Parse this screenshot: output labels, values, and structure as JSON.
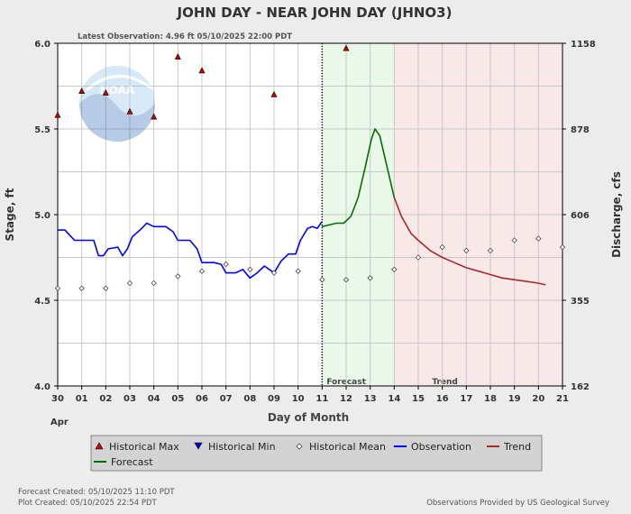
{
  "chart_data": {
    "type": "line",
    "title": "JOHN DAY - NEAR JOHN DAY  (JHNO3)",
    "subtitle": "Latest Observation: 4.96 ft 05/10/2025 22:00 PDT",
    "xlabel": "Day of Month",
    "ylabel_left": "Stage, ft",
    "ylabel_right": "Discharge, cfs",
    "xlim": [
      0,
      21
    ],
    "ylim": [
      4.0,
      6.0
    ],
    "x_ticks": [
      "30",
      "01",
      "02",
      "03",
      "04",
      "05",
      "06",
      "07",
      "08",
      "09",
      "10",
      "11",
      "12",
      "13",
      "14",
      "15",
      "16",
      "17",
      "18",
      "19",
      "20",
      "21"
    ],
    "x_month_label": "Apr",
    "y_ticks_left": [
      "4.0",
      "4.5",
      "5.0",
      "5.5",
      "6.0"
    ],
    "y_ticks_right": [
      {
        "stage": 4.0,
        "label": "162"
      },
      {
        "stage": 4.5,
        "label": "355"
      },
      {
        "stage": 5.0,
        "label": "606"
      },
      {
        "stage": 5.5,
        "label": "878"
      },
      {
        "stage": 6.0,
        "label": "1158"
      }
    ],
    "grid": true,
    "regions": [
      {
        "name": "Forecast",
        "x": [
          11,
          14
        ],
        "color": "#eaf8ea"
      },
      {
        "name": "Trend",
        "x": [
          14,
          21
        ],
        "color": "#f9e8e8"
      }
    ],
    "forecast_start_x": 11,
    "series": [
      {
        "name": "Observation",
        "color": "#0000ff",
        "points": [
          [
            0,
            4.91
          ],
          [
            0.3,
            4.91
          ],
          [
            0.7,
            4.85
          ],
          [
            1.5,
            4.85
          ],
          [
            1.7,
            4.76
          ],
          [
            1.9,
            4.76
          ],
          [
            2.1,
            4.8
          ],
          [
            2.5,
            4.81
          ],
          [
            2.7,
            4.76
          ],
          [
            2.9,
            4.8
          ],
          [
            3.1,
            4.87
          ],
          [
            3.5,
            4.92
          ],
          [
            3.7,
            4.95
          ],
          [
            4.0,
            4.93
          ],
          [
            4.5,
            4.93
          ],
          [
            4.8,
            4.9
          ],
          [
            5.0,
            4.85
          ],
          [
            5.5,
            4.85
          ],
          [
            5.8,
            4.8
          ],
          [
            6.0,
            4.72
          ],
          [
            6.5,
            4.72
          ],
          [
            6.8,
            4.71
          ],
          [
            7.0,
            4.66
          ],
          [
            7.4,
            4.66
          ],
          [
            7.7,
            4.68
          ],
          [
            8.0,
            4.63
          ],
          [
            8.3,
            4.66
          ],
          [
            8.6,
            4.7
          ],
          [
            8.9,
            4.67
          ],
          [
            9.0,
            4.66
          ],
          [
            9.3,
            4.73
          ],
          [
            9.6,
            4.77
          ],
          [
            9.9,
            4.77
          ],
          [
            10.1,
            4.85
          ],
          [
            10.4,
            4.92
          ],
          [
            10.6,
            4.93
          ],
          [
            10.8,
            4.92
          ],
          [
            11.0,
            4.96
          ]
        ]
      },
      {
        "name": "Forecast",
        "color": "#007000",
        "points": [
          [
            11.0,
            4.93
          ],
          [
            11.3,
            4.94
          ],
          [
            11.6,
            4.95
          ],
          [
            11.9,
            4.95
          ],
          [
            12.2,
            4.99
          ],
          [
            12.5,
            5.1
          ],
          [
            12.8,
            5.28
          ],
          [
            13.05,
            5.44
          ],
          [
            13.2,
            5.5
          ],
          [
            13.4,
            5.46
          ],
          [
            13.7,
            5.28
          ],
          [
            14.0,
            5.1
          ]
        ]
      },
      {
        "name": "Trend",
        "color": "#a52a2a",
        "points": [
          [
            14.0,
            5.1
          ],
          [
            14.3,
            4.99
          ],
          [
            14.7,
            4.89
          ],
          [
            15.0,
            4.85
          ],
          [
            15.5,
            4.79
          ],
          [
            16.0,
            4.75
          ],
          [
            16.5,
            4.72
          ],
          [
            17.0,
            4.69
          ],
          [
            17.5,
            4.67
          ],
          [
            18.0,
            4.65
          ],
          [
            18.5,
            4.63
          ],
          [
            19.0,
            4.62
          ],
          [
            19.5,
            4.61
          ],
          [
            20.0,
            4.6
          ],
          [
            20.3,
            4.59
          ]
        ]
      }
    ],
    "historical_max": [
      [
        0,
        5.58
      ],
      [
        1,
        5.72
      ],
      [
        2,
        5.71
      ],
      [
        3,
        5.6
      ],
      [
        4,
        5.57
      ],
      [
        5,
        5.92
      ],
      [
        6,
        5.84
      ],
      [
        9,
        5.7
      ],
      [
        12,
        5.97
      ]
    ],
    "historical_mean": [
      [
        0,
        4.57
      ],
      [
        1,
        4.57
      ],
      [
        2,
        4.57
      ],
      [
        3,
        4.6
      ],
      [
        4,
        4.6
      ],
      [
        5,
        4.64
      ],
      [
        6,
        4.67
      ],
      [
        7,
        4.71
      ],
      [
        8,
        4.68
      ],
      [
        9,
        4.66
      ],
      [
        10,
        4.67
      ],
      [
        11,
        4.62
      ],
      [
        12,
        4.62
      ],
      [
        13,
        4.63
      ],
      [
        14,
        4.68
      ],
      [
        15,
        4.75
      ],
      [
        16,
        4.81
      ],
      [
        17,
        4.79
      ],
      [
        18,
        4.79
      ],
      [
        19,
        4.85
      ],
      [
        20,
        4.86
      ],
      [
        21,
        4.81
      ]
    ],
    "legend": [
      {
        "name": "Historical Max",
        "kind": "triangle-up",
        "color": "#d00000"
      },
      {
        "name": "Historical Min",
        "kind": "triangle-down",
        "color": "#0000cc"
      },
      {
        "name": "Historical Mean",
        "kind": "diamond",
        "color": "#ffffff"
      },
      {
        "name": "Observation",
        "kind": "line",
        "color": "#0000ff"
      },
      {
        "name": "Trend",
        "kind": "line",
        "color": "#a52a2a"
      },
      {
        "name": "Forecast",
        "kind": "line",
        "color": "#007000"
      }
    ]
  },
  "footer": {
    "forecast_created": "Forecast Created: 05/10/2025 11:10 PDT",
    "plot_created": "Plot Created: 05/10/2025 22:54 PDT",
    "provider": "Observations Provided by US Geological Survey"
  },
  "logo": {
    "text": "NOAA"
  }
}
